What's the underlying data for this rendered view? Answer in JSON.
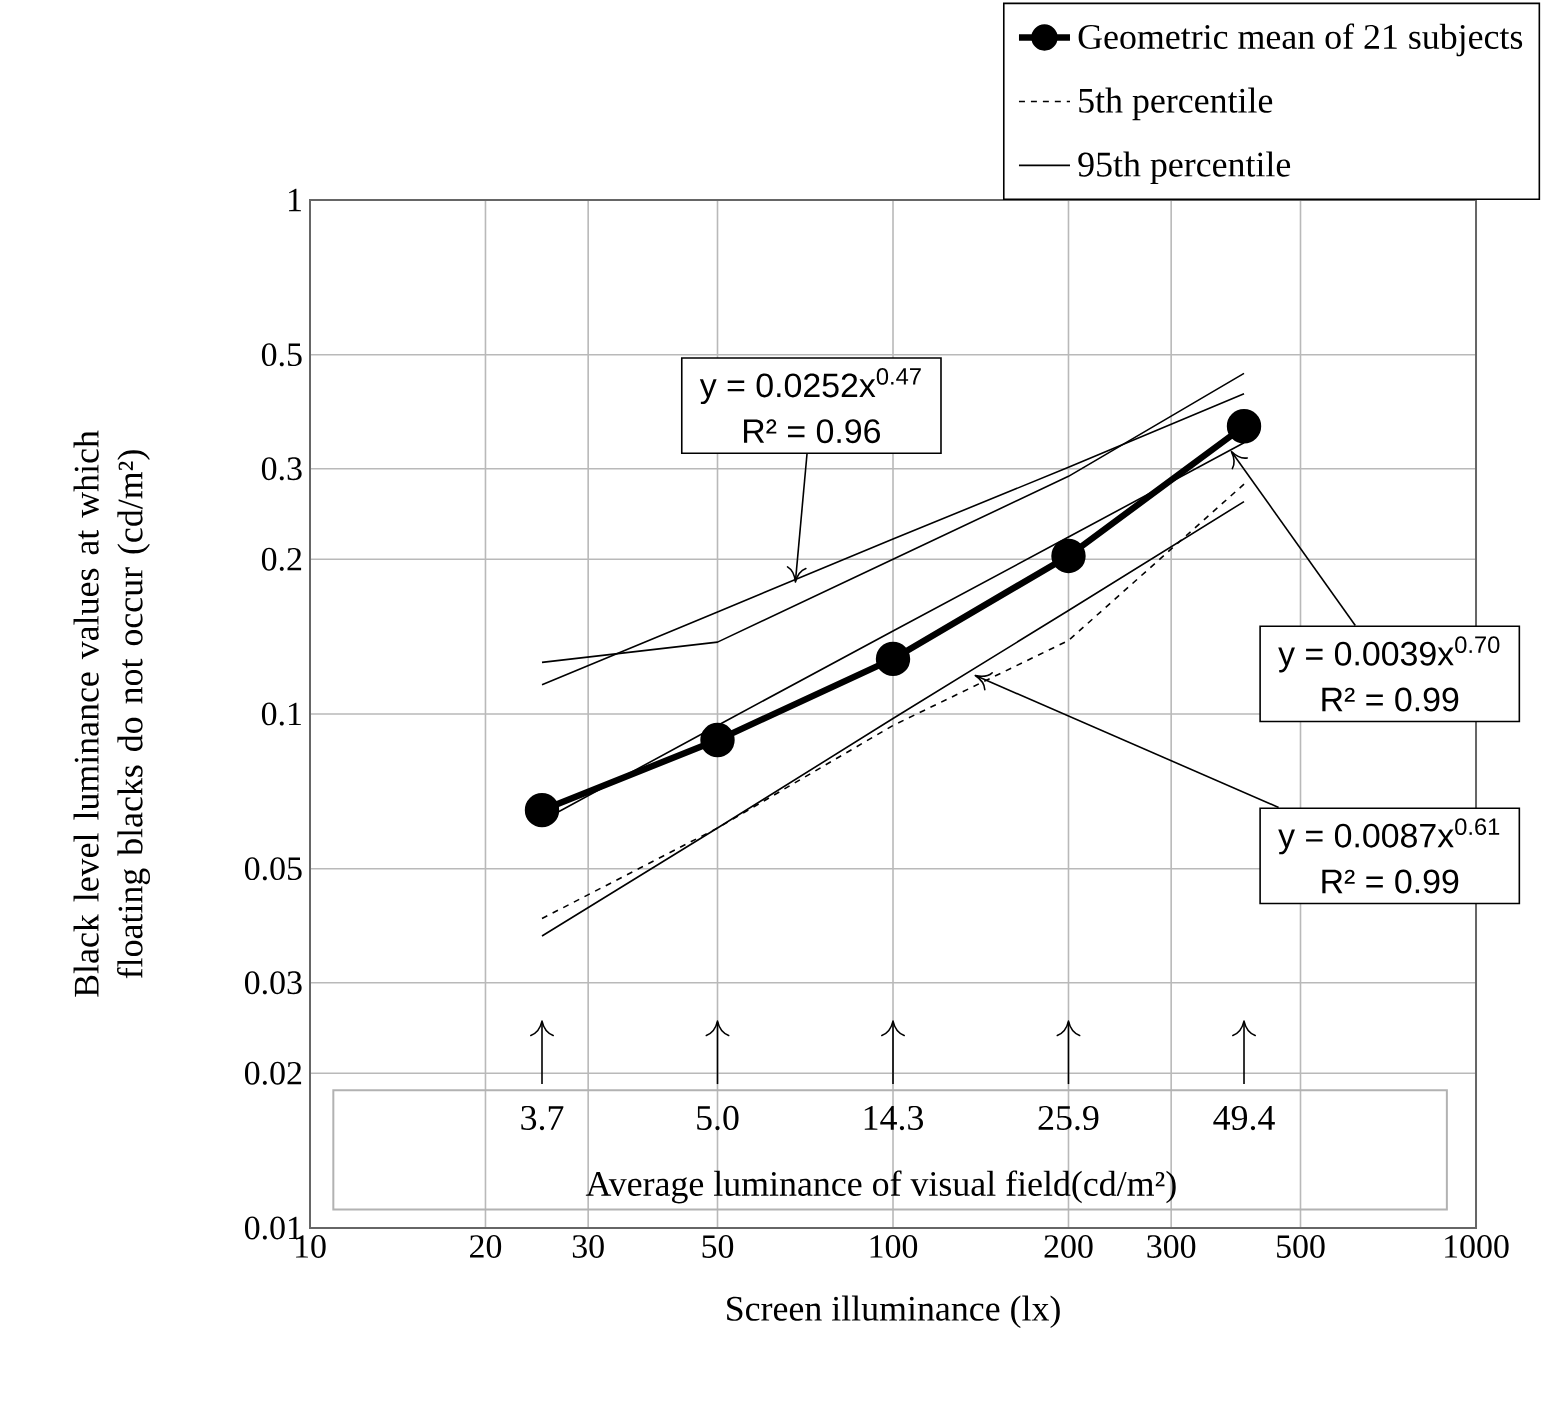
{
  "chart_data": {
    "type": "line",
    "xlabel": "Screen illuminance (lx)",
    "ylabel": "Black level luminance values at which floating blacks do not occur (cd/m²)",
    "log": "xy",
    "grid": true,
    "legend": "top right",
    "xlim": [
      10,
      1000
    ],
    "xticks": [
      10,
      20,
      30,
      50,
      100,
      200,
      300,
      500,
      1000
    ],
    "ylim": [
      0.01,
      1
    ],
    "yticks": [
      0.01,
      0.02,
      0.03,
      0.05,
      0.1,
      0.2,
      0.3,
      0.5,
      1
    ],
    "x": [
      25,
      50,
      100,
      200,
      400
    ],
    "series": [
      {
        "name": "Geometric mean of 21 subjects",
        "color": "#000000",
        "marker": "circle",
        "line_style": "solid",
        "values": [
          0.065,
          0.089,
          0.128,
          0.203,
          0.363
        ]
      },
      {
        "name": "5th percentile",
        "color": "#000000",
        "marker": "none",
        "line_style": "dashed",
        "values": [
          0.04,
          0.06,
          0.095,
          0.139,
          0.28
        ]
      },
      {
        "name": "95th percentile",
        "color": "#000000",
        "marker": "none",
        "line_style": "solid",
        "values": [
          0.126,
          0.138,
          0.2,
          0.29,
          0.46
        ]
      },
      {
        "type": "line",
        "color": "#000000",
        "marker": "none",
        "line_style": "solid",
        "values": [
          0.114,
          0.158,
          0.219,
          0.302,
          0.42
        ]
      },
      {
        "type": "line",
        "color": "#000000",
        "marker": "none",
        "line_style": "solid",
        "values": [
          0.062,
          0.095,
          0.145,
          0.221,
          0.337
        ]
      },
      {
        "type": "line",
        "color": "#000000",
        "marker": "none",
        "line_style": "solid",
        "values": [
          0.037,
          0.06,
          0.098,
          0.159,
          0.259
        ]
      }
    ],
    "annotations": [
      "y = 0.0252x$^{0.47}$",
      {
        "text": "R² = 0.96",
        "x": 68,
        "y": 0.18
      },
      {
        "text": "y = 0.0039x$^{0.70}$",
        "x": 380,
        "y": 0.325
      },
      "R² = 0.99",
      {
        "text": "y = 0.0087x$^{0.61}$",
        "x": 138,
        "y": 0.119
      },
      "R² = 0.99",
      "3.7",
      "5.0",
      "14.3",
      "25.9",
      "49.4",
      "Average luminance of visual field(cd/m²)"
    ]
  }
}
